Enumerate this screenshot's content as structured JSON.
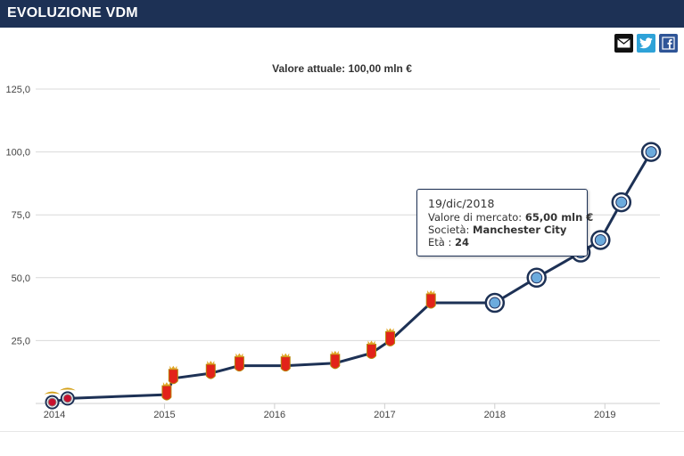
{
  "header": {
    "title": "EVOLUZIONE VDM"
  },
  "share": [
    {
      "name": "mail-icon",
      "color": "#111111"
    },
    {
      "name": "twitter-icon",
      "color": "#2ea2d8"
    },
    {
      "name": "facebook-icon",
      "color": "#2f5597"
    }
  ],
  "subtitle": "Valore attuale: 100,00 mln €",
  "tooltip": {
    "date": "19/dic/2018",
    "value_label": "Valore di mercato: ",
    "value": "65,00 mln €",
    "club_label": "Società: ",
    "club": "Manchester City",
    "age_label": "Età : ",
    "age": "24"
  },
  "chart_data": {
    "type": "line",
    "title": "Valore attuale: 100,00 mln €",
    "xlabel": "",
    "ylabel": "",
    "xlim": [
      2013.83,
      2019.5
    ],
    "ylim": [
      0,
      125
    ],
    "x_ticks": [
      "2014",
      "2015",
      "2016",
      "2017",
      "2018",
      "2019"
    ],
    "y_ticks": [
      "25,0",
      "50,0",
      "75,0",
      "100,0",
      "125,0"
    ],
    "grid": true,
    "line_color": "#1d3155",
    "series": [
      {
        "values": [
          {
            "x": 2013.98,
            "y": 0.5,
            "club": "Benfica"
          },
          {
            "x": 2014.12,
            "y": 2,
            "club": "Benfica"
          },
          {
            "x": 2015.02,
            "y": 3.5,
            "club": "Monaco"
          },
          {
            "x": 2015.08,
            "y": 10,
            "club": "Monaco"
          },
          {
            "x": 2015.42,
            "y": 12,
            "club": "Monaco"
          },
          {
            "x": 2015.68,
            "y": 15,
            "club": "Monaco"
          },
          {
            "x": 2016.1,
            "y": 15,
            "club": "Monaco"
          },
          {
            "x": 2016.55,
            "y": 16,
            "club": "Monaco"
          },
          {
            "x": 2016.88,
            "y": 20,
            "club": "Monaco"
          },
          {
            "x": 2017.05,
            "y": 25,
            "club": "Monaco"
          },
          {
            "x": 2017.42,
            "y": 40,
            "club": "Monaco"
          },
          {
            "x": 2018.0,
            "y": 40,
            "club": "Manchester City"
          },
          {
            "x": 2018.38,
            "y": 50,
            "club": "Manchester City"
          },
          {
            "x": 2018.78,
            "y": 60,
            "club": "Manchester City"
          },
          {
            "x": 2018.96,
            "y": 65,
            "club": "Manchester City"
          },
          {
            "x": 2019.15,
            "y": 80,
            "club": "Manchester City"
          },
          {
            "x": 2019.42,
            "y": 100,
            "club": "Manchester City"
          }
        ]
      }
    ],
    "club_colors": {
      "Benfica": "#c8102e",
      "Monaco": "#e2231a",
      "Manchester City": "#6cabdd"
    }
  }
}
